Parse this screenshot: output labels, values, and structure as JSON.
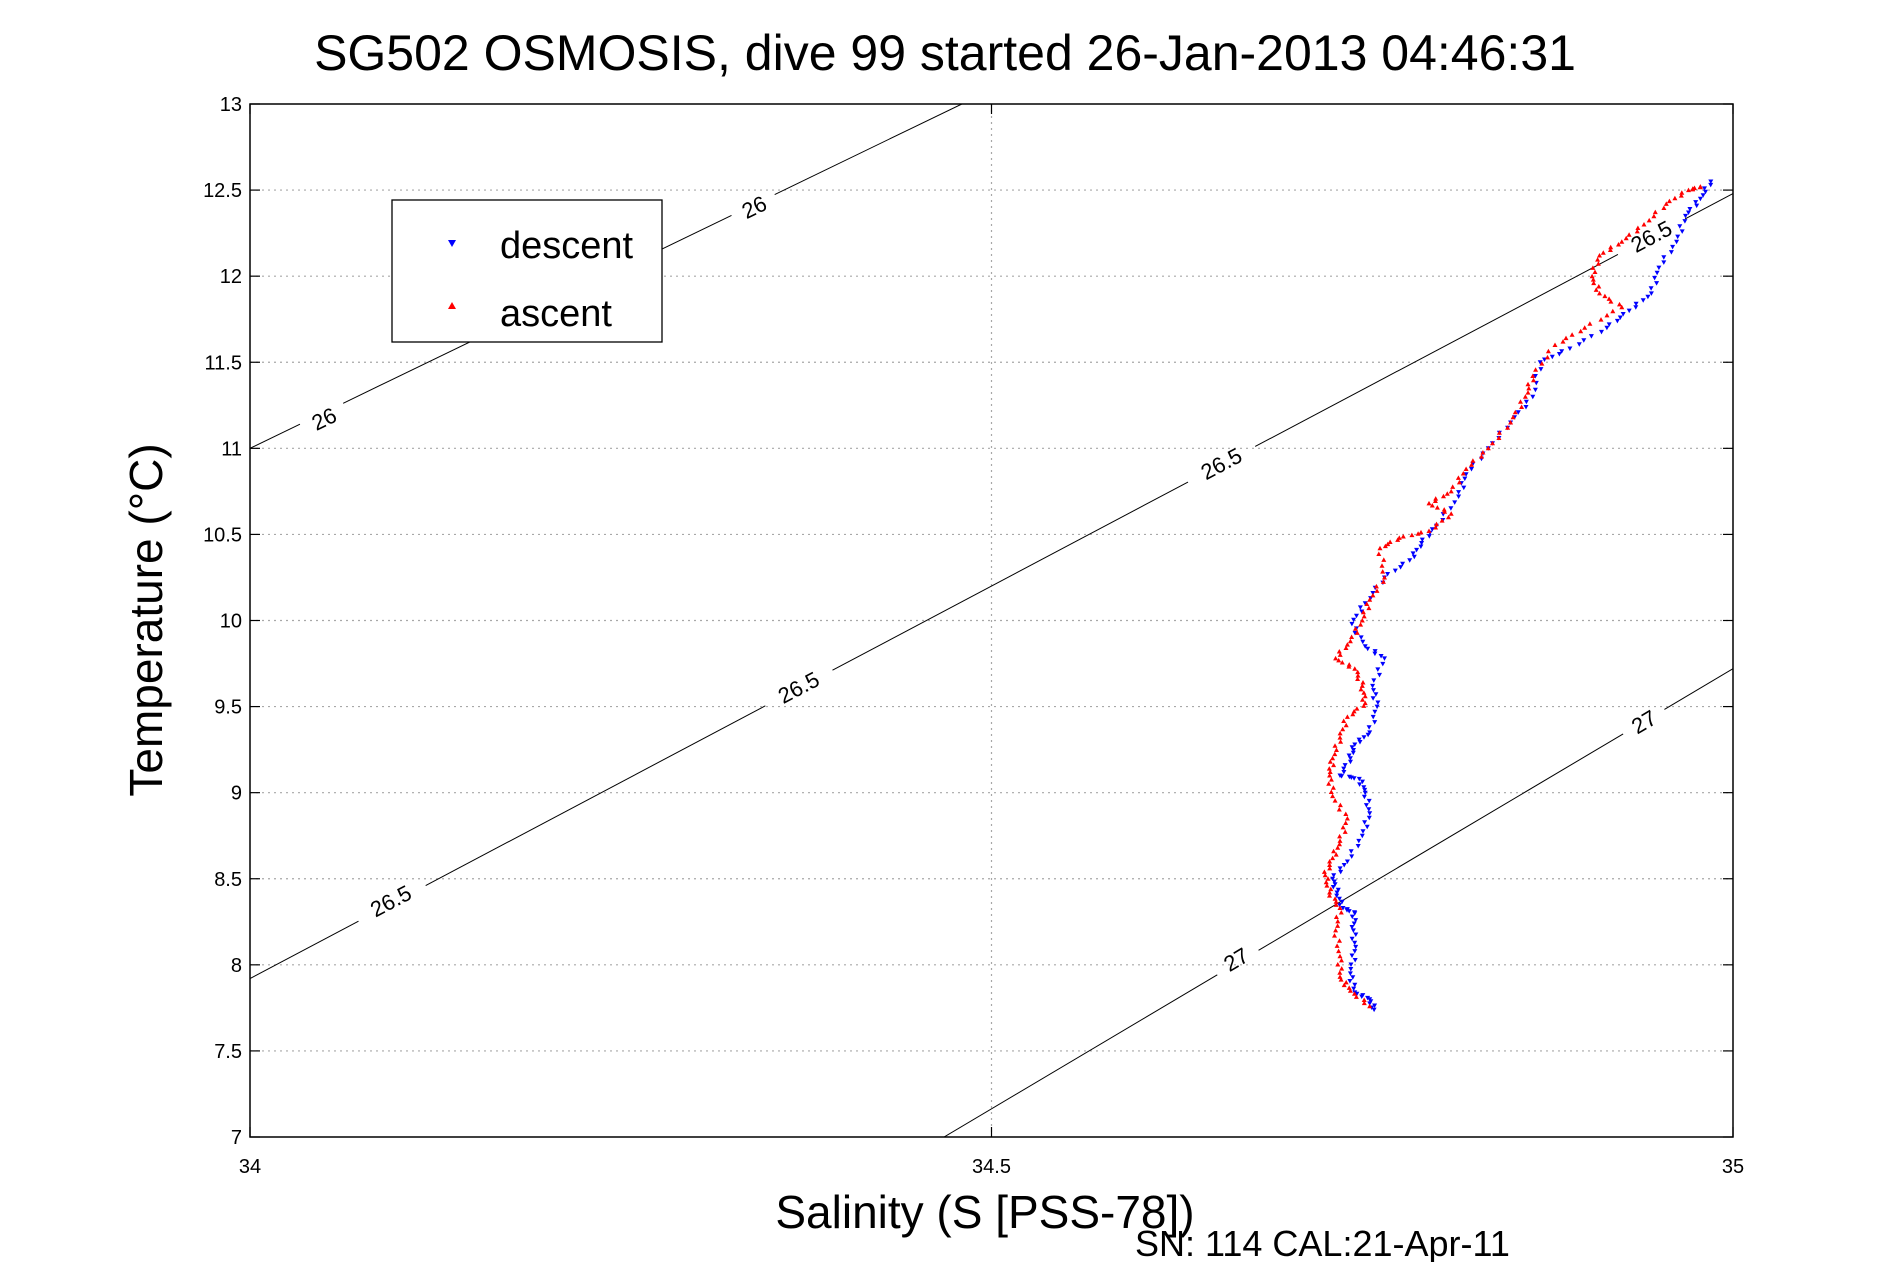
{
  "chart_data": {
    "type": "scatter",
    "title": "SG502 OSMOSIS, dive 99 started 26-Jan-2013 04:46:31",
    "xlabel": "Salinity (S [PSS-78])",
    "ylabel": "Temperature (°C)",
    "xlim": [
      34,
      35
    ],
    "ylim": [
      7,
      13
    ],
    "x_ticks": [
      "34",
      "34.5",
      "35"
    ],
    "x_tick_values": [
      34,
      34.5,
      35
    ],
    "y_ticks": [
      "7",
      "7.5",
      "8",
      "8.5",
      "9",
      "9.5",
      "10",
      "10.5",
      "11",
      "11.5",
      "12",
      "12.5",
      "13"
    ],
    "y_tick_values": [
      7,
      7.5,
      8,
      8.5,
      9,
      9.5,
      10,
      10.5,
      11,
      11.5,
      12,
      12.5,
      13
    ],
    "grid": true,
    "legend_position": "top-left",
    "footer": "SN: 114  CAL:21-Apr-11",
    "series": [
      {
        "name": "descent",
        "color": "#0000ff",
        "marker": "triangle-down",
        "points": [
          [
            34.758,
            7.74
          ],
          [
            34.755,
            7.8
          ],
          [
            34.745,
            7.84
          ],
          [
            34.742,
            7.95
          ],
          [
            34.745,
            8.08
          ],
          [
            34.744,
            8.2
          ],
          [
            34.745,
            8.3
          ],
          [
            34.737,
            8.33
          ],
          [
            34.733,
            8.42
          ],
          [
            34.73,
            8.5
          ],
          [
            34.74,
            8.6
          ],
          [
            34.75,
            8.75
          ],
          [
            34.755,
            8.88
          ],
          [
            34.752,
            9.0
          ],
          [
            34.748,
            9.08
          ],
          [
            34.735,
            9.1
          ],
          [
            34.742,
            9.2
          ],
          [
            34.745,
            9.28
          ],
          [
            34.755,
            9.35
          ],
          [
            34.76,
            9.5
          ],
          [
            34.757,
            9.62
          ],
          [
            34.765,
            9.78
          ],
          [
            34.752,
            9.85
          ],
          [
            34.743,
            9.98
          ],
          [
            34.752,
            10.1
          ],
          [
            34.765,
            10.25
          ],
          [
            34.782,
            10.35
          ],
          [
            34.79,
            10.45
          ],
          [
            34.8,
            10.55
          ],
          [
            34.815,
            10.72
          ],
          [
            34.82,
            10.85
          ],
          [
            34.835,
            11.0
          ],
          [
            34.85,
            11.15
          ],
          [
            34.865,
            11.3
          ],
          [
            34.87,
            11.5
          ],
          [
            34.89,
            11.58
          ],
          [
            34.915,
            11.7
          ],
          [
            34.93,
            11.8
          ],
          [
            34.945,
            11.9
          ],
          [
            34.95,
            12.05
          ],
          [
            34.962,
            12.2
          ],
          [
            34.968,
            12.35
          ],
          [
            34.978,
            12.45
          ],
          [
            34.985,
            12.55
          ]
        ]
      },
      {
        "name": "ascent",
        "color": "#ff0000",
        "marker": "triangle-up",
        "points": [
          [
            34.755,
            7.76
          ],
          [
            34.742,
            7.85
          ],
          [
            34.735,
            7.93
          ],
          [
            34.735,
            8.05
          ],
          [
            34.732,
            8.2
          ],
          [
            34.735,
            8.33
          ],
          [
            34.728,
            8.42
          ],
          [
            34.725,
            8.52
          ],
          [
            34.73,
            8.62
          ],
          [
            34.735,
            8.72
          ],
          [
            34.74,
            8.85
          ],
          [
            34.73,
            8.98
          ],
          [
            34.728,
            9.1
          ],
          [
            34.73,
            9.2
          ],
          [
            34.735,
            9.32
          ],
          [
            34.74,
            9.44
          ],
          [
            34.752,
            9.52
          ],
          [
            34.75,
            9.62
          ],
          [
            34.745,
            9.72
          ],
          [
            34.732,
            9.78
          ],
          [
            34.742,
            9.88
          ],
          [
            34.75,
            10.0
          ],
          [
            34.755,
            10.12
          ],
          [
            34.765,
            10.25
          ],
          [
            34.762,
            10.42
          ],
          [
            34.775,
            10.48
          ],
          [
            34.795,
            10.52
          ],
          [
            34.81,
            10.62
          ],
          [
            34.795,
            10.68
          ],
          [
            34.81,
            10.75
          ],
          [
            34.82,
            10.88
          ],
          [
            34.835,
            11.0
          ],
          [
            34.85,
            11.15
          ],
          [
            34.86,
            11.3
          ],
          [
            34.865,
            11.42
          ],
          [
            34.88,
            11.6
          ],
          [
            34.9,
            11.7
          ],
          [
            34.925,
            11.82
          ],
          [
            34.91,
            11.9
          ],
          [
            34.905,
            12.0
          ],
          [
            34.91,
            12.12
          ],
          [
            34.925,
            12.2
          ],
          [
            34.94,
            12.3
          ],
          [
            34.955,
            12.42
          ],
          [
            34.97,
            12.5
          ],
          [
            34.978,
            12.52
          ]
        ]
      }
    ],
    "contours": [
      {
        "label": "26",
        "points": [
          [
            34,
            11.0
          ],
          [
            34.48,
            13.0
          ]
        ],
        "label_positions": [
          [
            34.05,
            11.17
          ],
          [
            34.34,
            12.4
          ]
        ]
      },
      {
        "label": "26.5",
        "points": [
          [
            34,
            7.92
          ],
          [
            35,
            12.48
          ]
        ],
        "label_positions": [
          [
            34.095,
            8.37
          ],
          [
            34.37,
            9.61
          ],
          [
            34.655,
            10.91
          ],
          [
            34.945,
            12.23
          ]
        ]
      },
      {
        "label": "27",
        "points": [
          [
            34.468,
            7.0
          ],
          [
            35,
            9.72
          ]
        ],
        "label_positions": [
          [
            34.665,
            8.03
          ],
          [
            34.94,
            9.41
          ]
        ]
      }
    ]
  }
}
